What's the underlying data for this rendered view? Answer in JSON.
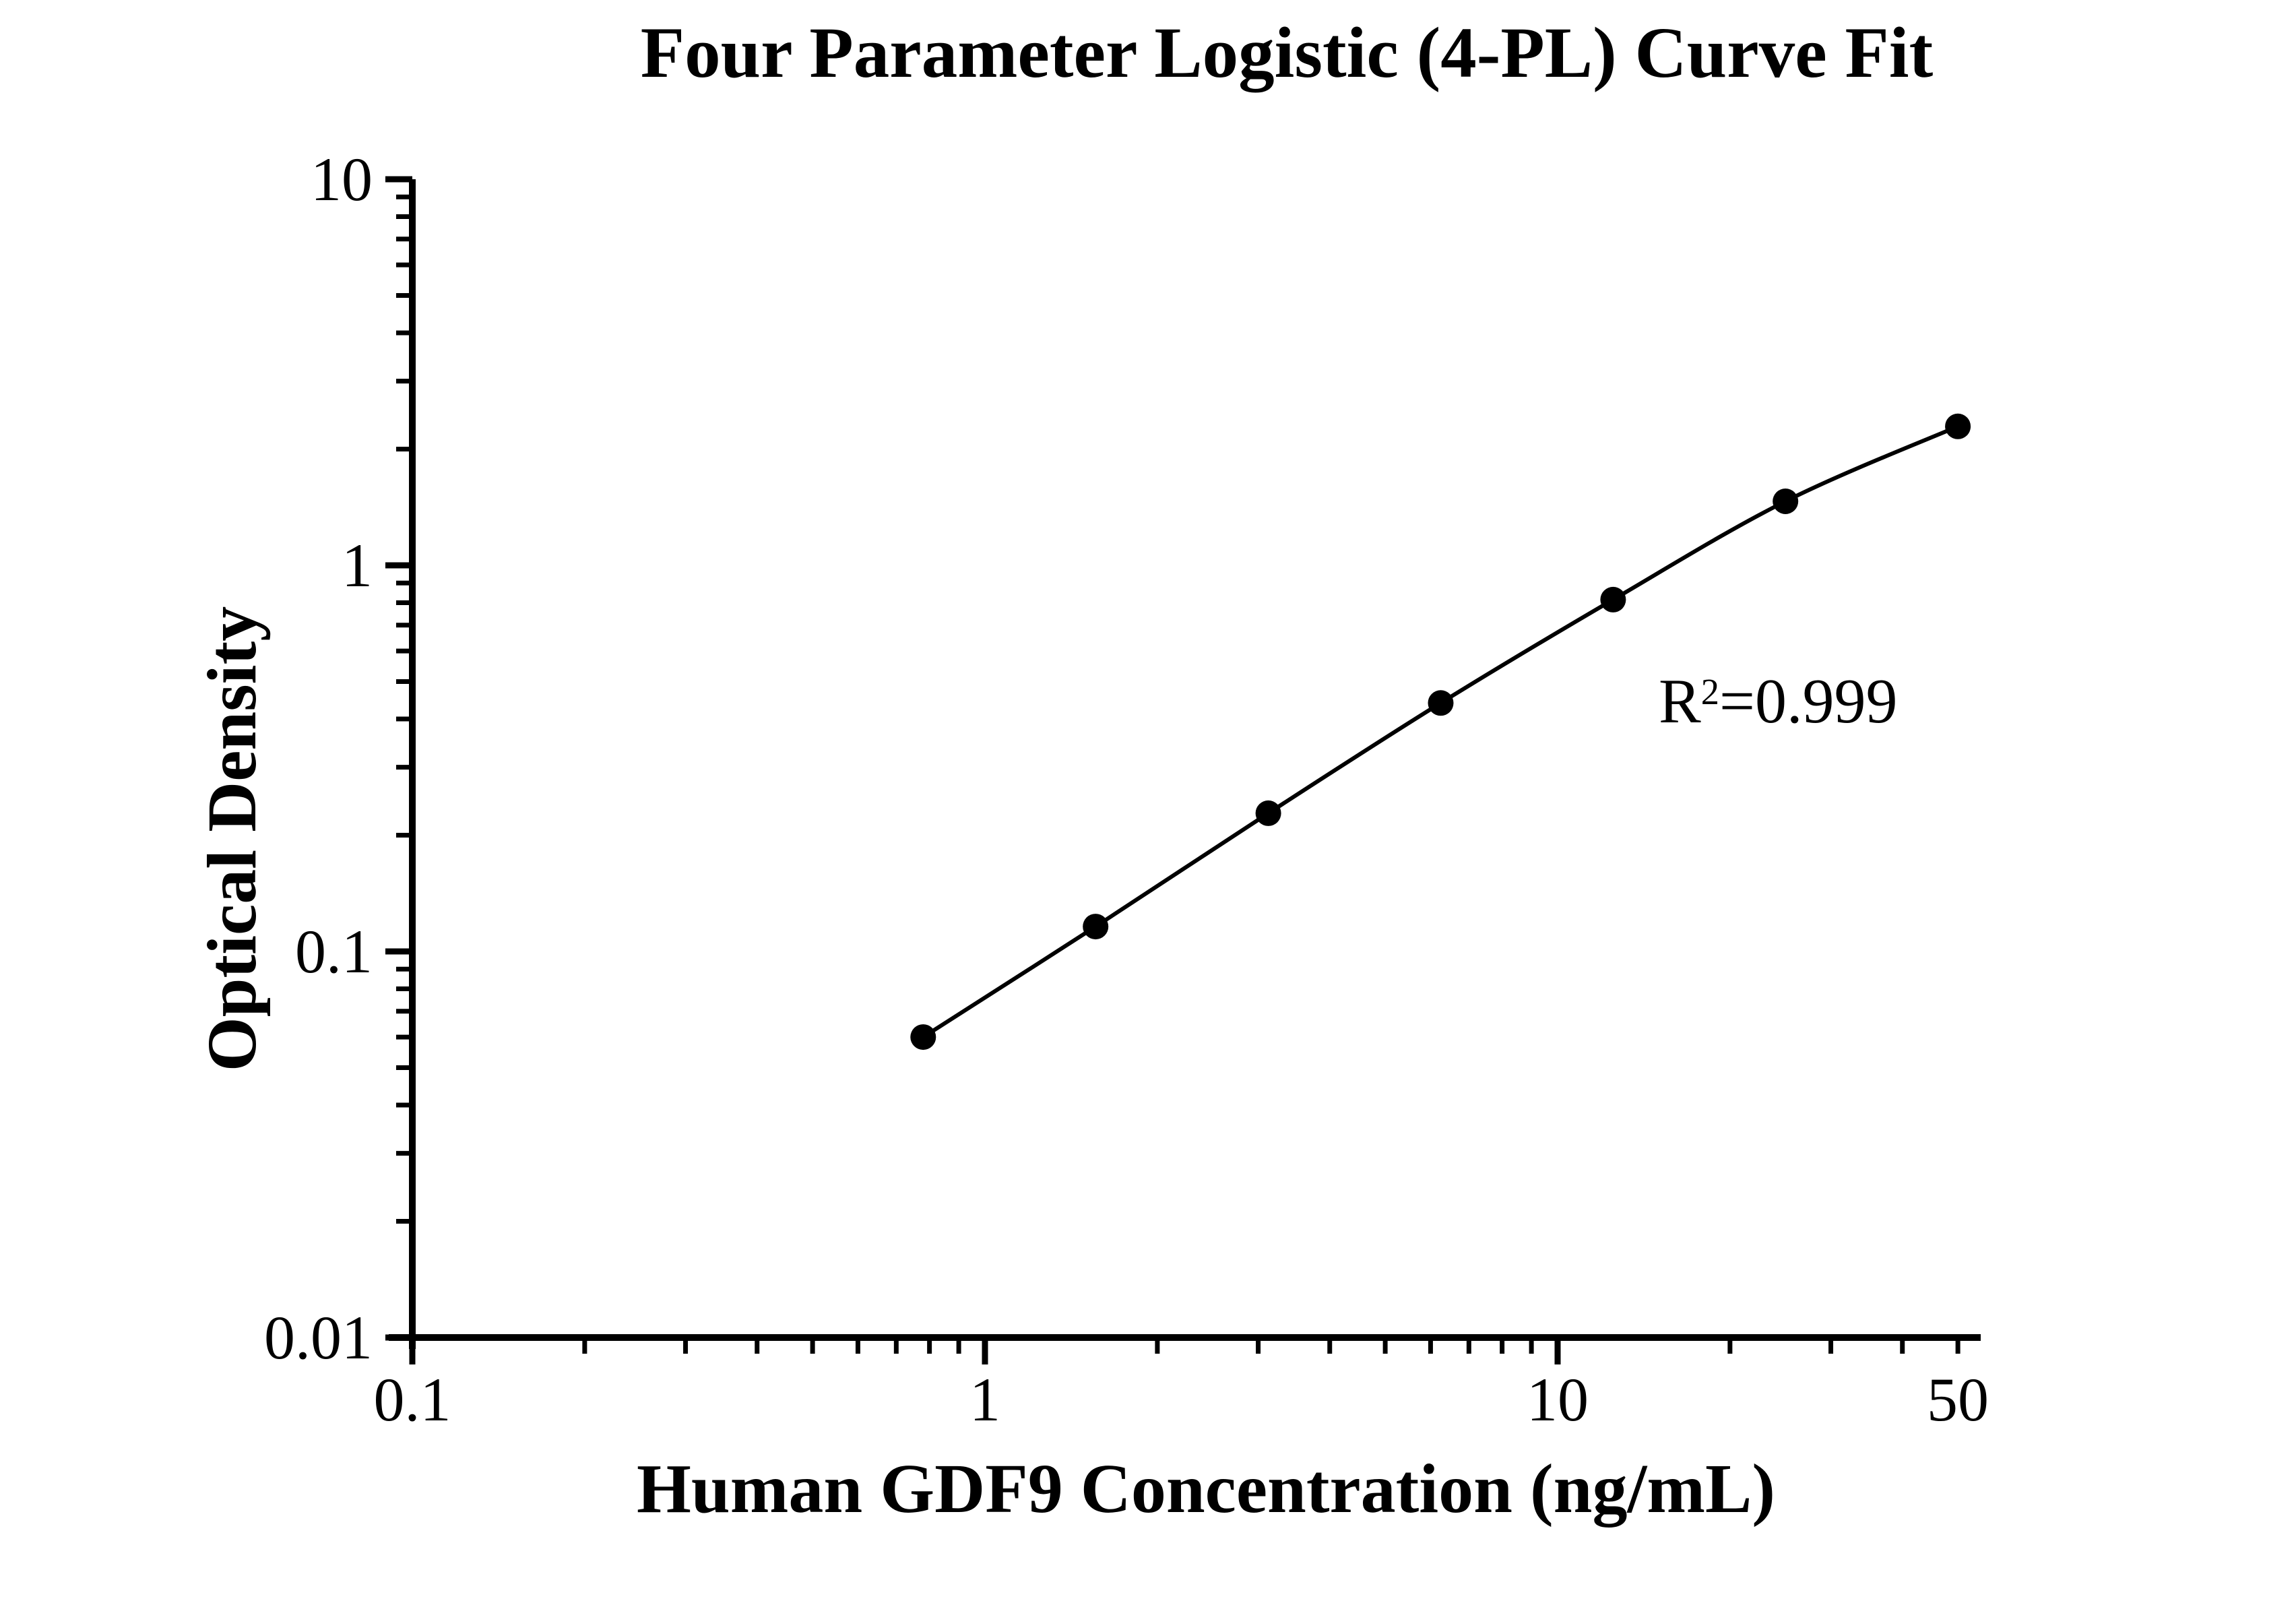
{
  "title": "Four Parameter Logistic (4-PL) Curve Fit",
  "annotation": {
    "base": "R",
    "sup": "2",
    "rest": "=0.999"
  },
  "chart_data": {
    "type": "scatter",
    "title": "Four Parameter Logistic (4-PL) Curve Fit",
    "xlabel": "Human GDF9 Concentration (ng/mL)",
    "ylabel": "Optical Density",
    "x_scale": "log",
    "y_scale": "log",
    "xlim": [
      0.09,
      55
    ],
    "ylim": [
      0.01,
      10
    ],
    "grid": false,
    "legend": false,
    "marker": "filled-circle",
    "line": "4-PL smooth fit through points",
    "color": "#000000",
    "background": "#ffffff",
    "r_squared_label": "R²=0.999",
    "x": [
      0.78,
      1.56,
      3.125,
      6.25,
      12.5,
      25,
      50
    ],
    "y": [
      0.06,
      0.116,
      0.228,
      0.44,
      0.815,
      1.465,
      2.29
    ],
    "x_labeled_ticks": [
      {
        "value": 0.1,
        "label": "0.1",
        "major": true
      },
      {
        "value": 1,
        "label": "1",
        "major": true
      },
      {
        "value": 10,
        "label": "10",
        "major": true
      },
      {
        "value": 50,
        "label": "50",
        "major": false
      }
    ],
    "x_minor_ticks": [
      0.2,
      0.3,
      0.4,
      0.5,
      0.6,
      0.7,
      0.8,
      0.9,
      2,
      3,
      4,
      5,
      6,
      7,
      8,
      9,
      20,
      30,
      40,
      50
    ],
    "y_labeled_ticks": [
      {
        "value": 10,
        "label": "10"
      },
      {
        "value": 1,
        "label": "1"
      },
      {
        "value": 0.1,
        "label": "0.1"
      },
      {
        "value": 0.01,
        "label": "0.01"
      }
    ],
    "y_minor_ticks": [
      0.02,
      0.03,
      0.04,
      0.05,
      0.06,
      0.07,
      0.08,
      0.09,
      0.2,
      0.3,
      0.4,
      0.5,
      0.6,
      0.7,
      0.8,
      0.9,
      2,
      3,
      4,
      5,
      6,
      7,
      8,
      9
    ]
  }
}
